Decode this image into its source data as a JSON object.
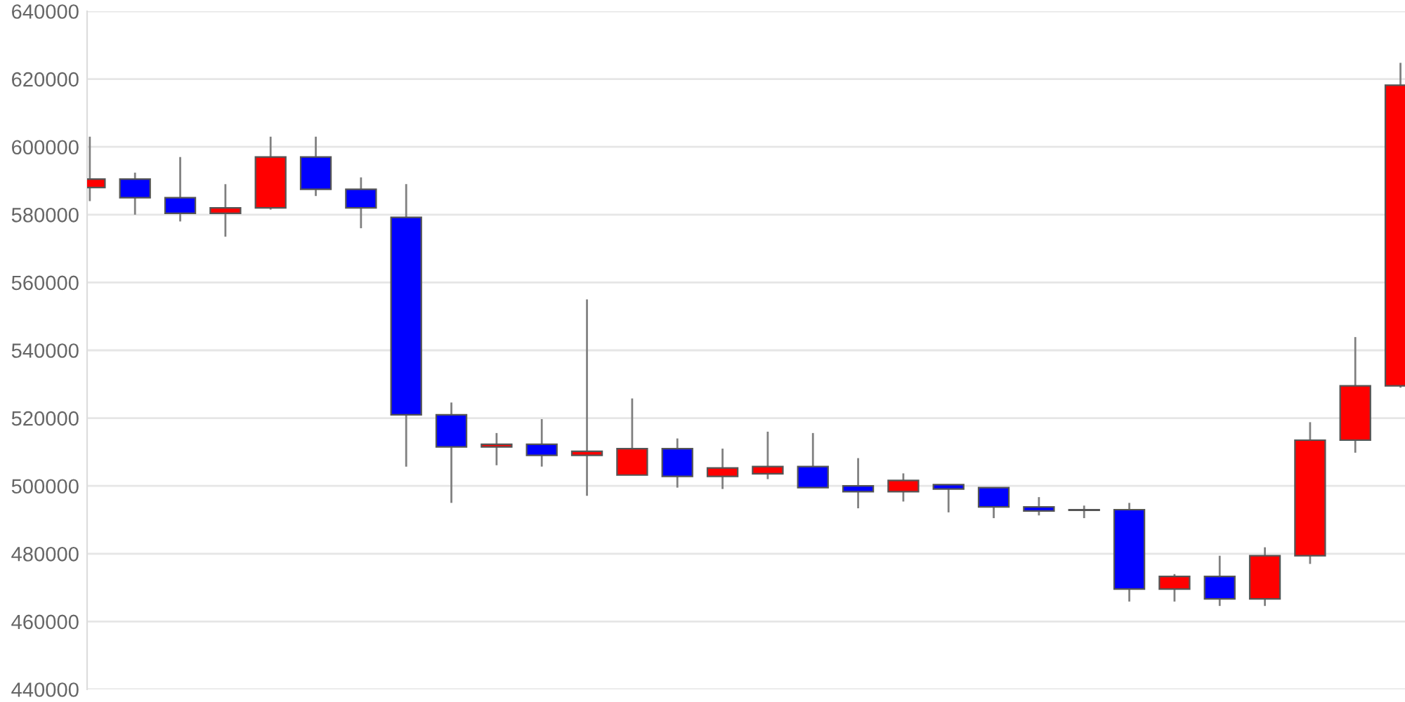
{
  "chart_data": {
    "type": "candlestick",
    "categories": [
      null,
      null,
      null,
      null,
      null,
      null,
      null,
      null,
      null,
      null,
      null,
      null,
      null,
      null,
      null,
      null,
      null,
      null,
      null,
      null,
      null,
      null,
      null,
      null,
      null,
      null,
      null,
      null,
      null,
      null
    ],
    "ohlc": [
      [
        588000,
        603000,
        584000,
        590500
      ],
      [
        590500,
        592400,
        580000,
        585000
      ],
      [
        585000,
        597000,
        578000,
        580400
      ],
      [
        580400,
        589000,
        573500,
        582000
      ],
      [
        582000,
        603000,
        581500,
        597000
      ],
      [
        597000,
        603000,
        585500,
        587500
      ],
      [
        587500,
        591000,
        576000,
        582000
      ],
      [
        579200,
        589000,
        505700,
        521000
      ],
      [
        521000,
        524600,
        495000,
        511500
      ],
      [
        511500,
        515600,
        506100,
        512300
      ],
      [
        512300,
        519700,
        505700,
        509000
      ],
      [
        509000,
        555000,
        497100,
        510200
      ],
      [
        503200,
        525800,
        503200,
        511000
      ],
      [
        511000,
        514000,
        499500,
        502800
      ],
      [
        502800,
        511000,
        499100,
        505300
      ],
      [
        503600,
        516000,
        502000,
        505700
      ],
      [
        505700,
        515600,
        499500,
        499500
      ],
      [
        500000,
        508200,
        493400,
        498300
      ],
      [
        498300,
        503700,
        495400,
        501600
      ],
      [
        500400,
        500400,
        492200,
        499100
      ],
      [
        499500,
        499500,
        490500,
        493800
      ],
      [
        493800,
        496700,
        491300,
        492600
      ],
      [
        493000,
        494200,
        490500,
        492800
      ],
      [
        493000,
        495000,
        465900,
        469600
      ],
      [
        469600,
        474000,
        465900,
        473300
      ],
      [
        473300,
        479400,
        464600,
        466700
      ],
      [
        466700,
        481900,
        464600,
        479400
      ],
      [
        479400,
        518800,
        477000,
        513500
      ],
      [
        513500,
        543900,
        509800,
        529500
      ],
      [
        529500,
        624800,
        529000,
        618200
      ]
    ],
    "colors": [
      "#ff0000",
      "#0000ff",
      "#0000ff",
      "#ff0000",
      "#ff0000",
      "#0000ff",
      "#0000ff",
      "#0000ff",
      "#0000ff",
      "#ff0000",
      "#0000ff",
      "#ff0000",
      "#ff0000",
      "#0000ff",
      "#ff0000",
      "#ff0000",
      "#0000ff",
      "#0000ff",
      "#ff0000",
      "#0000ff",
      "#0000ff",
      "#0000ff",
      "#0000ff",
      "#0000ff",
      "#ff0000",
      "#0000ff",
      "#ff0000",
      "#ff0000",
      "#ff0000",
      "#ff0000"
    ],
    "ylim": [
      440000,
      640000
    ],
    "yticks": [
      440000,
      460000,
      480000,
      500000,
      520000,
      540000,
      560000,
      580000,
      600000,
      620000,
      640000
    ],
    "grid": "y",
    "tick_labels": "y"
  }
}
